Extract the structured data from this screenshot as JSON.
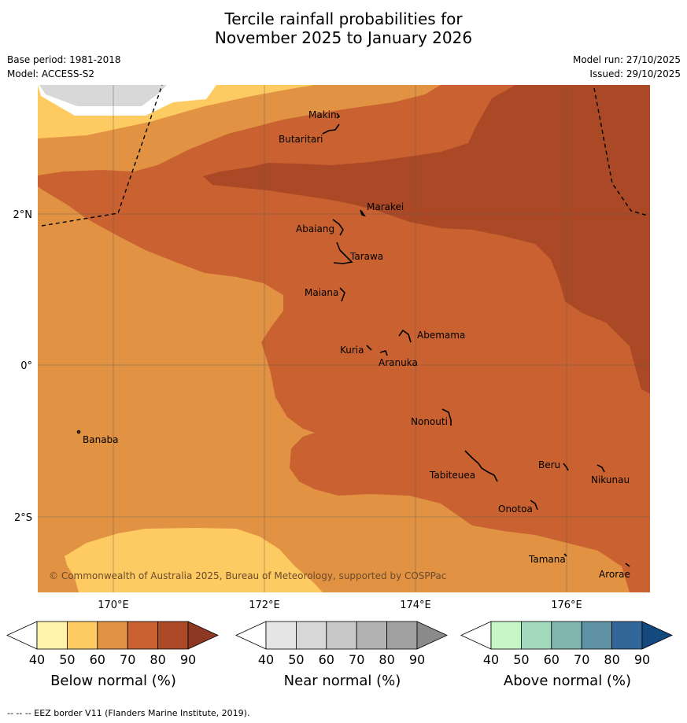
{
  "title": {
    "line1": "Tercile rainfall probabilities for",
    "line2": "November 2025 to January 2026"
  },
  "meta": {
    "base_period": "Base period: 1981-2018",
    "model": "Model: ACCESS-S2",
    "model_run": "Model run: 27/10/2025",
    "issued": "Issued: 29/10/2025"
  },
  "map": {
    "lat_labels": [
      "2°N",
      "0°",
      "2°S"
    ],
    "lon_labels": [
      "170°E",
      "172°E",
      "174°E",
      "176°E"
    ],
    "copyright": "© Commonwealth of Australia 2025, Bureau of Meteorology, supported by COSPPac",
    "places": [
      "Makin",
      "Butaritari",
      "Marakei",
      "Abaiang",
      "Tarawa",
      "Maiana",
      "Abemama",
      "Kuria",
      "Aranuka",
      "Banaba",
      "Nonouti",
      "Beru",
      "Nikunau",
      "Tabiteuea",
      "Onotoa",
      "Tamana",
      "Arorae"
    ],
    "fill_colors": {
      "below_50_60": "#fecb63",
      "below_60_70": "#e19343",
      "below_70_80": "#c96230",
      "below_80_90": "#ab4926",
      "near_50_60": "#d8d8d8"
    }
  },
  "colorbars": [
    {
      "label": "Below normal (%)",
      "ticks": [
        "40",
        "50",
        "60",
        "70",
        "80",
        "90"
      ],
      "colors": [
        "#fff2ab",
        "#fecb63",
        "#e19343",
        "#c96230",
        "#ab4926"
      ],
      "extend_color": "#8d3822"
    },
    {
      "label": "Near normal (%)",
      "ticks": [
        "40",
        "50",
        "60",
        "70",
        "80",
        "90"
      ],
      "colors": [
        "#e5e5e5",
        "#d7d7d7",
        "#c7c7c7",
        "#b3b3b3",
        "#a0a0a0"
      ],
      "extend_color": "#8a8a8a"
    },
    {
      "label": "Above normal (%)",
      "ticks": [
        "40",
        "50",
        "60",
        "70",
        "80",
        "90"
      ],
      "colors": [
        "#c8f7c7",
        "#a3d9bd",
        "#7fb6b0",
        "#5e92a4",
        "#336699"
      ],
      "extend_color": "#14497e"
    }
  ],
  "footer": "--  --  -- EEZ border V11 (Flanders Marine Institute, 2019)."
}
